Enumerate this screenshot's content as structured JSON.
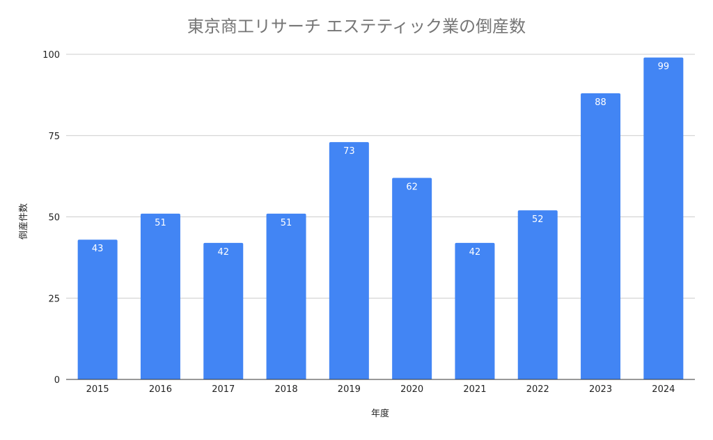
{
  "chart_data": {
    "type": "bar",
    "title": "東京商工リサーチ エステティック業の倒産数",
    "xlabel": "年度",
    "ylabel": "倒産件数",
    "categories": [
      "2015",
      "2016",
      "2017",
      "2018",
      "2019",
      "2020",
      "2021",
      "2022",
      "2023",
      "2024"
    ],
    "values": [
      43,
      51,
      42,
      51,
      73,
      62,
      42,
      52,
      88,
      99
    ],
    "ylim": [
      0,
      100
    ],
    "yticks": [
      0,
      25,
      50,
      75,
      100
    ],
    "grid": true,
    "legend": "none",
    "colors": {
      "bar": "#4285f4",
      "title": "#757575",
      "grid": "#cccccc"
    }
  }
}
